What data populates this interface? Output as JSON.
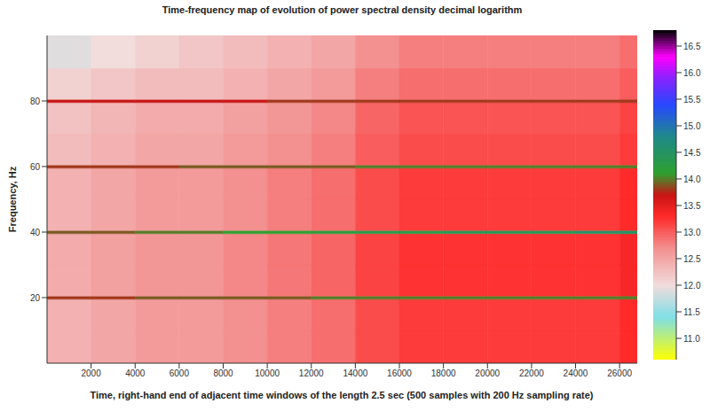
{
  "chart_data": {
    "type": "heatmap",
    "title": "Time-frequency map of evolution of power spectral density decimal logarithm",
    "x_label": "Time, right-hand end of adjacent time windows of the length 2.5 sec (500 samples with 200 Hz sampling rate)",
    "y_label": "Frequency, Hz",
    "xlim": [
      0,
      26800
    ],
    "ylim": [
      0,
      100
    ],
    "xticks": [
      2000,
      4000,
      6000,
      8000,
      10000,
      12000,
      14000,
      16000,
      18000,
      20000,
      22000,
      24000,
      26000
    ],
    "yticks": [
      20,
      40,
      60,
      80
    ],
    "x_edges": [
      0,
      2000,
      4000,
      6000,
      8000,
      10000,
      12000,
      14000,
      16000,
      18000,
      20000,
      22000,
      24000,
      26000,
      26800
    ],
    "y_edges": [
      0,
      10,
      19.5,
      20.5,
      30,
      39.5,
      40.5,
      50,
      59.5,
      60.5,
      70,
      79.5,
      80.5,
      90,
      100
    ],
    "cells": [
      [
        12.4,
        12.5,
        12.6,
        12.6,
        12.7,
        12.8,
        12.9,
        13.1,
        13.2,
        13.2,
        13.2,
        13.2,
        13.2,
        13.3
      ],
      [
        12.4,
        12.5,
        12.6,
        12.6,
        12.7,
        12.8,
        12.9,
        13.1,
        13.2,
        13.2,
        13.2,
        13.2,
        13.2,
        13.3
      ],
      [
        13.8,
        13.8,
        13.9,
        13.9,
        13.9,
        13.9,
        14.0,
        14.0,
        14.0,
        14.0,
        14.0,
        14.0,
        14.0,
        14.0
      ],
      [
        12.45,
        12.55,
        12.65,
        12.65,
        12.75,
        12.85,
        12.95,
        13.15,
        13.25,
        13.25,
        13.25,
        13.25,
        13.25,
        13.35
      ],
      [
        12.45,
        12.55,
        12.65,
        12.65,
        12.75,
        12.85,
        12.95,
        13.15,
        13.25,
        13.25,
        13.25,
        13.25,
        13.25,
        13.35
      ],
      [
        13.9,
        13.9,
        14.0,
        14.0,
        14.1,
        14.1,
        14.2,
        14.3,
        14.3,
        14.4,
        14.4,
        14.4,
        14.5,
        14.5
      ],
      [
        12.4,
        12.5,
        12.6,
        12.6,
        12.7,
        12.8,
        12.9,
        13.1,
        13.2,
        13.2,
        13.2,
        13.2,
        13.2,
        13.3
      ],
      [
        12.4,
        12.5,
        12.6,
        12.6,
        12.7,
        12.8,
        12.9,
        13.1,
        13.2,
        13.2,
        13.2,
        13.2,
        13.2,
        13.3
      ],
      [
        13.8,
        13.8,
        13.8,
        13.9,
        13.9,
        13.9,
        13.9,
        14.0,
        14.0,
        14.0,
        14.0,
        14.0,
        14.0,
        14.0
      ],
      [
        12.3,
        12.4,
        12.5,
        12.5,
        12.6,
        12.7,
        12.8,
        13.0,
        13.1,
        13.1,
        13.1,
        13.1,
        13.1,
        13.2
      ],
      [
        12.25,
        12.35,
        12.45,
        12.45,
        12.55,
        12.65,
        12.75,
        12.95,
        13.05,
        13.05,
        13.05,
        13.05,
        13.05,
        13.15
      ],
      [
        13.7,
        13.7,
        13.7,
        13.7,
        13.7,
        13.8,
        13.8,
        13.8,
        13.8,
        13.8,
        13.8,
        13.8,
        13.8,
        13.8
      ],
      [
        12.1,
        12.2,
        12.3,
        12.3,
        12.4,
        12.5,
        12.6,
        12.8,
        12.9,
        12.9,
        12.9,
        12.9,
        12.9,
        13.0
      ],
      [
        11.9,
        12.0,
        12.1,
        12.2,
        12.3,
        12.4,
        12.5,
        12.7,
        12.8,
        12.8,
        12.8,
        12.8,
        12.8,
        12.9
      ]
    ],
    "colorbar": {
      "range": [
        10.6,
        16.8
      ],
      "ticks": [
        {
          "value": 11,
          "label": "11.0"
        },
        11.5,
        {
          "value": 12,
          "label": "12.0"
        },
        12.5,
        {
          "value": 13,
          "label": "13.0"
        },
        13.5,
        {
          "value": 14,
          "label": "14.0"
        },
        14.5,
        {
          "value": 15,
          "label": "15.0"
        },
        15.5,
        {
          "value": 16,
          "label": "16.0"
        },
        16.5
      ]
    }
  }
}
